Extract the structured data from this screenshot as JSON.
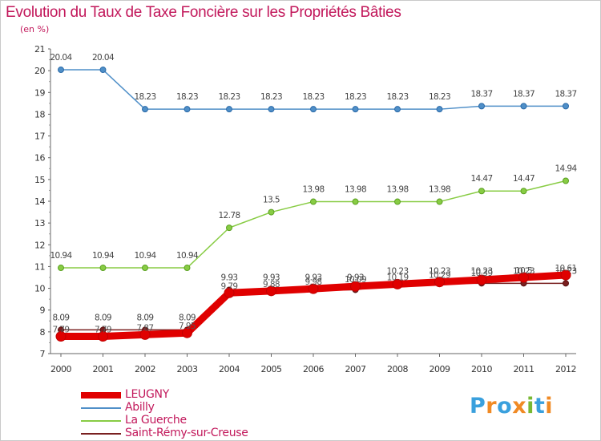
{
  "title": "Evolution du Taux de Taxe Foncière sur les Propriétés Bâties",
  "unit_label": "(en %)",
  "chart_data": {
    "type": "line",
    "x": [
      "2000",
      "2001",
      "2002",
      "2003",
      "2004",
      "2005",
      "2006",
      "2007",
      "2008",
      "2009",
      "2010",
      "2011",
      "2012"
    ],
    "ylim": [
      7,
      21
    ],
    "yticks": [
      7,
      8,
      9,
      10,
      11,
      12,
      13,
      14,
      15,
      16,
      17,
      18,
      19,
      20,
      21
    ],
    "grid": false,
    "series": [
      {
        "name": "LEUGNY",
        "color": "#e00000",
        "values": [
          7.79,
          7.79,
          7.87,
          7.95,
          9.79,
          9.88,
          9.98,
          10.09,
          10.19,
          10.29,
          10.39,
          10.5,
          10.61
        ],
        "labels": [
          "7.79",
          "7.79",
          "7.87",
          "7.95",
          "9.79",
          "9.88",
          "9.98",
          "10.09",
          "10.19",
          "10.29",
          "10.39",
          "10.5",
          "10.61"
        ]
      },
      {
        "name": "Abilly",
        "color": "#4f8fc8",
        "values": [
          20.04,
          20.04,
          18.23,
          18.23,
          18.23,
          18.23,
          18.23,
          18.23,
          18.23,
          18.23,
          18.37,
          18.37,
          18.37
        ],
        "labels": [
          "20.04",
          "20.04",
          "18.23",
          "18.23",
          "18.23",
          "18.23",
          "18.23",
          "18.23",
          "18.23",
          "18.23",
          "18.37",
          "18.37",
          "18.37"
        ]
      },
      {
        "name": "La Guerche",
        "color": "#88cc44",
        "values": [
          10.94,
          10.94,
          10.94,
          10.94,
          12.78,
          13.5,
          13.98,
          13.98,
          13.98,
          13.98,
          14.47,
          14.47,
          14.94
        ],
        "labels": [
          "10.94",
          "10.94",
          "10.94",
          "10.94",
          "12.78",
          "13.5",
          "13.98",
          "13.98",
          "13.98",
          "13.98",
          "14.47",
          "14.47",
          "14.94"
        ]
      },
      {
        "name": "Saint-Rémy-sur-Creuse",
        "color": "#7a2020",
        "values": [
          8.09,
          8.09,
          8.09,
          8.09,
          9.93,
          9.93,
          9.93,
          9.93,
          10.23,
          10.23,
          10.23,
          10.23,
          10.23
        ],
        "labels": [
          "8.09",
          "8.09",
          "8.09",
          "8.09",
          "9.93",
          "9.93",
          "9.93",
          "9.93",
          "10.23",
          "10.23",
          "10.23",
          "10.23",
          "10.23"
        ]
      }
    ]
  },
  "legend": [
    {
      "name": "LEUGNY",
      "color": "#e00000"
    },
    {
      "name": "Abilly",
      "color": "#4f8fc8"
    },
    {
      "name": "La Guerche",
      "color": "#88cc44"
    },
    {
      "name": "Saint-Rémy-sur-Creuse",
      "color": "#7a2020"
    }
  ],
  "logo": {
    "text": "Proxiti",
    "colors": [
      "#3aa0dd",
      "#f08a24",
      "#3aa0dd",
      "#f08a24",
      "#78b833",
      "#3aa0dd",
      "#f08a24"
    ]
  }
}
